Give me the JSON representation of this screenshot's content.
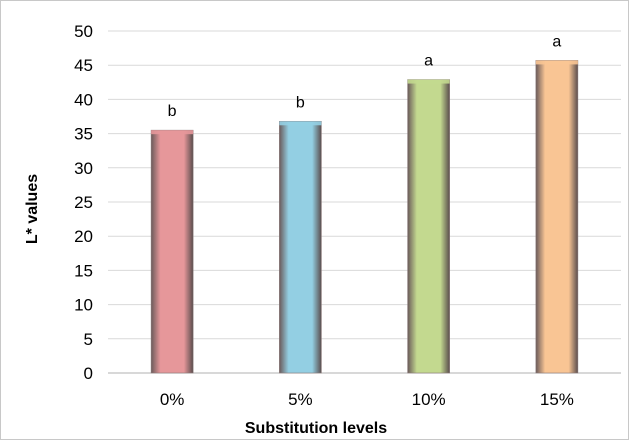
{
  "chart_data": {
    "type": "bar",
    "categories": [
      "0%",
      "5%",
      "10%",
      "15%"
    ],
    "values": [
      35.5,
      36.8,
      42.9,
      45.7
    ],
    "data_labels": [
      "b",
      "b",
      "a",
      "a"
    ],
    "colors": [
      "#e6979a",
      "#93cfe3",
      "#c3d98f",
      "#f9c594"
    ],
    "title": "",
    "xlabel": "Substitution levels",
    "ylabel": "L* values",
    "ylim": [
      0,
      50
    ],
    "yticks": [
      0,
      5,
      10,
      15,
      20,
      25,
      30,
      35,
      40,
      45,
      50
    ],
    "grid": true,
    "legend": "none"
  }
}
